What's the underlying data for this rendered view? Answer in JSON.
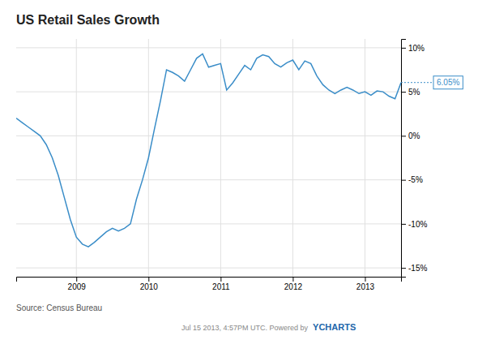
{
  "chart_data": {
    "type": "line",
    "title": "US Retail Sales Growth",
    "source": "Source: Census Bureau",
    "footer": [
      "Jul 15 2013, 4:57PM UTC.  Powered by",
      "YCHARTS"
    ],
    "color": "#3a8dc8",
    "grid": true,
    "categories": [
      null,
      null,
      null,
      null,
      null,
      null,
      null,
      null,
      null,
      null,
      "2009",
      null,
      null,
      null,
      null,
      null,
      null,
      null,
      null,
      null,
      null,
      null,
      "2010",
      null,
      null,
      null,
      null,
      null,
      null,
      null,
      null,
      null,
      null,
      null,
      "2011",
      null,
      null,
      null,
      null,
      null,
      null,
      null,
      null,
      null,
      null,
      null,
      "2012",
      null,
      null,
      null,
      null,
      null,
      null,
      null,
      null,
      null,
      null,
      null,
      "2013",
      null,
      null,
      null,
      null,
      null,
      null
    ],
    "values": [
      2.0,
      1.5,
      1.0,
      0.5,
      0.0,
      -1.0,
      -2.5,
      -4.5,
      -7.0,
      -9.5,
      -11.5,
      -12.3,
      -12.6,
      -12.1,
      -11.5,
      -10.9,
      -10.5,
      -10.8,
      -10.5,
      -10.0,
      -7.2,
      -5.0,
      -2.5,
      0.8,
      4.0,
      7.5,
      7.2,
      6.8,
      6.2,
      7.5,
      8.8,
      9.3,
      7.8,
      8.0,
      8.2,
      5.2,
      6.0,
      7.0,
      8.0,
      7.5,
      8.8,
      9.2,
      9.0,
      8.2,
      7.8,
      8.3,
      8.6,
      7.5,
      8.5,
      8.2,
      6.8,
      5.8,
      5.2,
      4.8,
      5.2,
      5.5,
      5.2,
      4.8,
      5.0,
      4.6,
      5.1,
      5.0,
      4.5,
      4.2,
      6.05
    ],
    "ylim": [
      -16,
      11
    ],
    "yticks": [
      {
        "value": -15,
        "label": "-15%"
      },
      {
        "value": -10,
        "label": "-10%"
      },
      {
        "value": -5,
        "label": "-5%"
      },
      {
        "value": 0,
        "label": "0%"
      },
      {
        "value": 5,
        "label": "5%"
      },
      {
        "value": 10,
        "label": "10%"
      }
    ],
    "annotations": [
      {
        "text": "6.05%",
        "value": 6.05
      }
    ]
  }
}
